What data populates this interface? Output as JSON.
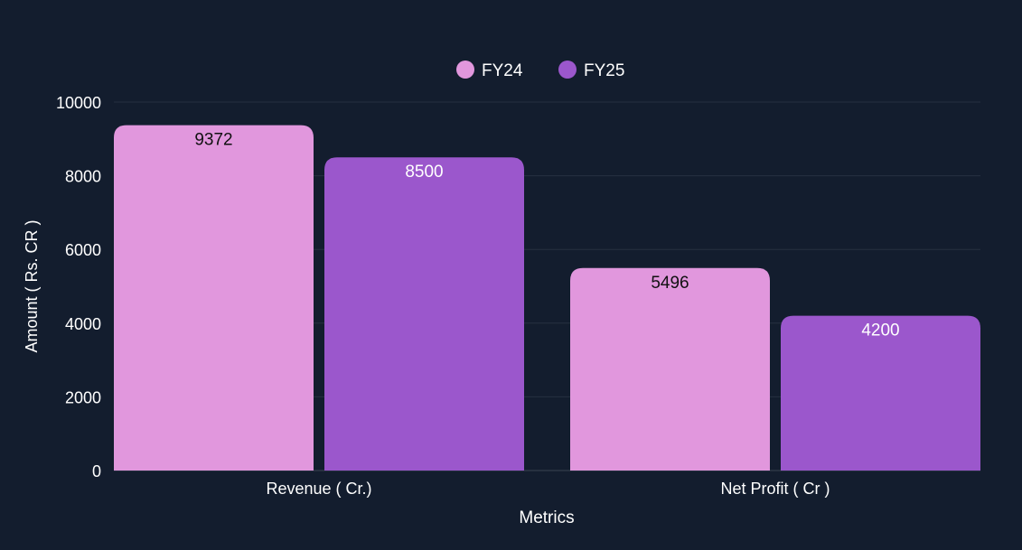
{
  "chart_data": {
    "type": "bar",
    "title": "",
    "categories": [
      "Revenue ( Cr.)",
      "Net Profit ( Cr )"
    ],
    "series": [
      {
        "name": "FY24",
        "values": [
          9372,
          5496
        ],
        "color": "#e197dd",
        "label_color": "#111111"
      },
      {
        "name": "FY25",
        "values": [
          8500,
          4200
        ],
        "color": "#9b57cc",
        "label_color": "#ffffff"
      }
    ],
    "xlabel": "Metrics",
    "ylabel": "Amount ( Rs. CR )",
    "ylim": [
      0,
      10000
    ],
    "yticks": [
      "0",
      "2000",
      "4000",
      "6000",
      "8000",
      "10000"
    ],
    "grid": true,
    "legend_position": "top-center",
    "background": "#131d2e"
  }
}
